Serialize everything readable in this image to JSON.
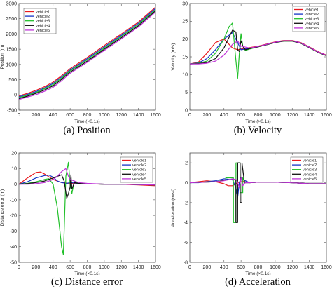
{
  "chart_data": [
    {
      "type": "line",
      "xlabel": "Time (×0.1s)",
      "ylabel": "Position (m)",
      "caption": "(a)  Position",
      "xlim": [
        0,
        1600
      ],
      "ylim": [
        -500,
        3000
      ],
      "xticks": [
        0,
        200,
        400,
        600,
        800,
        1000,
        1200,
        1400,
        1600
      ],
      "yticks": [
        -500,
        0,
        500,
        1000,
        1500,
        2000,
        2500,
        3000
      ],
      "grid": false,
      "legend_position": "top-left",
      "series": [
        {
          "name": "vehicle1",
          "color": "#e8191e",
          "x": [
            0,
            100,
            200,
            300,
            400,
            500,
            560,
            600,
            800,
            1000,
            1200,
            1400,
            1600
          ],
          "y": [
            -30,
            50,
            150,
            270,
            420,
            630,
            770,
            860,
            1230,
            1620,
            2000,
            2390,
            2880
          ]
        },
        {
          "name": "vehicle2",
          "color": "#1433c7",
          "x": [
            0,
            100,
            200,
            300,
            400,
            500,
            560,
            600,
            800,
            1000,
            1200,
            1400,
            1600
          ],
          "y": [
            -60,
            20,
            110,
            230,
            380,
            590,
            730,
            820,
            1190,
            1580,
            1960,
            2350,
            2840
          ]
        },
        {
          "name": "vehicle3",
          "color": "#22c02b",
          "x": [
            0,
            100,
            200,
            300,
            400,
            500,
            560,
            600,
            800,
            1000,
            1200,
            1400,
            1600
          ],
          "y": [
            -90,
            -10,
            80,
            200,
            340,
            550,
            700,
            790,
            1150,
            1540,
            1920,
            2310,
            2800
          ]
        },
        {
          "name": "vehicle4",
          "color": "#111111",
          "x": [
            0,
            100,
            200,
            300,
            400,
            500,
            560,
            600,
            800,
            1000,
            1200,
            1400,
            1600
          ],
          "y": [
            -120,
            -40,
            50,
            160,
            300,
            510,
            660,
            750,
            1110,
            1500,
            1880,
            2270,
            2760
          ]
        },
        {
          "name": "vehicle5",
          "color": "#c032d8",
          "x": [
            0,
            100,
            200,
            300,
            400,
            500,
            560,
            600,
            800,
            1000,
            1200,
            1400,
            1600
          ],
          "y": [
            -150,
            -70,
            10,
            120,
            250,
            460,
            620,
            710,
            1070,
            1460,
            1840,
            2230,
            2720
          ]
        }
      ]
    },
    {
      "type": "line",
      "xlabel": "Time (×0.1s)",
      "ylabel": "Velocity (m/s)",
      "caption": "(b)  Velocity",
      "xlim": [
        0,
        1600
      ],
      "ylim": [
        0,
        30
      ],
      "xticks": [
        0,
        200,
        400,
        600,
        800,
        1000,
        1200,
        1400,
        1600
      ],
      "yticks": [
        0,
        5,
        10,
        15,
        20,
        25,
        30
      ],
      "grid": false,
      "legend_position": "top-right",
      "series": [
        {
          "name": "vehicle1",
          "color": "#e8191e",
          "x": [
            0,
            100,
            200,
            300,
            400,
            500,
            560,
            600,
            700,
            800,
            900,
            1000,
            1100,
            1200,
            1300,
            1400,
            1500,
            1600
          ],
          "y": [
            13,
            13.5,
            16,
            19,
            20,
            17.5,
            17,
            17.2,
            17.6,
            18,
            18.6,
            19.2,
            19.6,
            19.6,
            19,
            17.8,
            16.5,
            15.5
          ]
        },
        {
          "name": "vehicle2",
          "color": "#1433c7",
          "x": [
            0,
            100,
            200,
            300,
            400,
            500,
            560,
            600,
            700,
            800,
            900,
            1000,
            1100,
            1200,
            1300,
            1400,
            1500,
            1600
          ],
          "y": [
            13,
            13.3,
            14.5,
            17,
            20,
            21.8,
            19,
            17,
            17.4,
            17.9,
            18.5,
            19.1,
            19.5,
            19.5,
            18.9,
            17.7,
            16.4,
            15.4
          ]
        },
        {
          "name": "vehicle3",
          "color": "#22c02b",
          "x": [
            0,
            100,
            200,
            300,
            400,
            460,
            500,
            540,
            560,
            580,
            600,
            620,
            650,
            700,
            800,
            900,
            1000,
            1100,
            1200,
            1300,
            1400,
            1500,
            1600
          ],
          "y": [
            13,
            13.2,
            13.8,
            16,
            20,
            23.5,
            24.5,
            14,
            9,
            16,
            21.5,
            18,
            16.8,
            17.2,
            17.8,
            18.4,
            19,
            19.4,
            19.4,
            18.8,
            17.6,
            16.3,
            15.3
          ]
        },
        {
          "name": "vehicle4",
          "color": "#111111",
          "x": [
            0,
            100,
            200,
            300,
            400,
            450,
            500,
            540,
            560,
            580,
            600,
            620,
            650,
            700,
            800,
            900,
            1000,
            1100,
            1200,
            1300,
            1400,
            1500,
            1600
          ],
          "y": [
            13,
            13.1,
            13.4,
            14.5,
            17.5,
            20,
            22.5,
            22,
            17,
            16.5,
            19.5,
            18,
            17,
            17.3,
            17.8,
            18.4,
            19,
            19.4,
            19.4,
            18.8,
            17.6,
            16.3,
            15.3
          ]
        },
        {
          "name": "vehicle5",
          "color": "#c032d8",
          "x": [
            0,
            100,
            200,
            300,
            400,
            500,
            560,
            600,
            700,
            800,
            900,
            1000,
            1100,
            1200,
            1300,
            1400,
            1500,
            1600
          ],
          "y": [
            13,
            13,
            13.2,
            13.8,
            15.5,
            18.5,
            19.5,
            18,
            17.5,
            17.9,
            18.5,
            19.1,
            19.5,
            19.5,
            18.9,
            17.7,
            16.4,
            15.4
          ]
        }
      ]
    },
    {
      "type": "line",
      "xlabel": "Time (×0.1s)",
      "ylabel": "Distance error (m)",
      "caption": "(c)  Distance error",
      "xlim": [
        0,
        1600
      ],
      "ylim": [
        -50,
        20
      ],
      "xticks": [
        0,
        200,
        400,
        600,
        800,
        1000,
        1200,
        1400,
        1600
      ],
      "yticks": [
        -50,
        -40,
        -30,
        -20,
        -10,
        0,
        10,
        20
      ],
      "grid": false,
      "legend_position": "top-right",
      "series": [
        {
          "name": "vehicle1",
          "color": "#e8191e",
          "x": [
            0,
            100,
            200,
            250,
            300,
            400,
            500,
            600,
            700,
            800,
            1000,
            1200,
            1400,
            1600
          ],
          "y": [
            0,
            4,
            7.5,
            7.8,
            6.5,
            3,
            1,
            0.5,
            0.3,
            0.2,
            0,
            0,
            -0.5,
            -1
          ]
        },
        {
          "name": "vehicle2",
          "color": "#1433c7",
          "x": [
            0,
            100,
            200,
            300,
            350,
            400,
            450,
            500,
            560,
            600,
            700,
            800,
            1000,
            1200,
            1400,
            1600
          ],
          "y": [
            0,
            1.5,
            4,
            5.5,
            5.8,
            4.5,
            2,
            1,
            0.5,
            1,
            0.5,
            0.3,
            0,
            0,
            -0.3,
            -0.5
          ]
        },
        {
          "name": "vehicle3",
          "color": "#22c02b",
          "x": [
            0,
            100,
            200,
            300,
            350,
            400,
            450,
            480,
            500,
            520,
            530,
            550,
            580,
            600,
            620,
            650,
            700,
            800,
            1000,
            1200,
            1400,
            1600
          ],
          "y": [
            0,
            0.5,
            1.5,
            3,
            3.5,
            0,
            -15,
            -30,
            -40,
            -45,
            -30,
            5,
            14,
            0,
            -6,
            2,
            0.5,
            0.3,
            0,
            0,
            -0.3,
            -0.5
          ]
        },
        {
          "name": "vehicle4",
          "color": "#111111",
          "x": [
            0,
            100,
            200,
            300,
            400,
            450,
            500,
            530,
            560,
            580,
            600,
            610,
            620,
            650,
            700,
            800,
            1000,
            1200,
            1400,
            1600
          ],
          "y": [
            0,
            0.3,
            1,
            2,
            4,
            5,
            6,
            2,
            -9,
            -6,
            -2,
            6,
            -3,
            1,
            0.5,
            0.3,
            0,
            0,
            -0.3,
            -0.5
          ]
        },
        {
          "name": "vehicle5",
          "color": "#c032d8",
          "x": [
            0,
            100,
            200,
            300,
            400,
            450,
            500,
            550,
            580,
            600,
            700,
            800,
            1000,
            1200,
            1400,
            1600
          ],
          "y": [
            0,
            0,
            0.3,
            1,
            3,
            5,
            8,
            10,
            5,
            3,
            1,
            0.5,
            0,
            0,
            -0.3,
            -0.5
          ]
        }
      ]
    },
    {
      "type": "line",
      "xlabel": "Time (×0.1s)",
      "ylabel": "Acceleration (m/s²)",
      "caption": "(d)  Acceleration",
      "xlim": [
        0,
        1600
      ],
      "ylim": [
        -8,
        3
      ],
      "xticks": [
        0,
        200,
        400,
        600,
        800,
        1000,
        1200,
        1400,
        1600
      ],
      "yticks": [
        -8,
        -6,
        -4,
        -2,
        0,
        2
      ],
      "grid": false,
      "legend_position": "top-right",
      "series": [
        {
          "name": "vehicle1",
          "color": "#e8191e",
          "x": [
            0,
            100,
            200,
            300,
            400,
            450,
            500,
            560,
            600,
            650,
            700,
            800,
            1000,
            1200,
            1400,
            1600
          ],
          "y": [
            0,
            0.1,
            0.2,
            0.1,
            -0.1,
            -0.3,
            -0.3,
            0,
            0.1,
            0.2,
            0,
            0.05,
            0.05,
            0,
            -0.1,
            -0.1
          ]
        },
        {
          "name": "vehicle2",
          "color": "#1433c7",
          "x": [
            0,
            100,
            200,
            300,
            400,
            500,
            540,
            560,
            580,
            600,
            650,
            700,
            800,
            1000,
            1200,
            1400,
            1600
          ],
          "y": [
            0,
            0,
            0.1,
            0.2,
            0.4,
            0.3,
            -0.5,
            -1.5,
            0,
            0.5,
            0.2,
            0,
            0.05,
            0.05,
            0,
            -0.1,
            -0.1
          ]
        },
        {
          "name": "vehicle3",
          "color": "#22c02b",
          "x": [
            0,
            300,
            420,
            421,
            470,
            510,
            511,
            540,
            541,
            590,
            591,
            620,
            621,
            650,
            700,
            800,
            1000,
            1200,
            1400,
            1600
          ],
          "y": [
            0,
            0.1,
            0.3,
            0.5,
            0.5,
            0.5,
            -4,
            -4,
            2,
            2,
            -1,
            -1,
            0.5,
            0,
            0,
            0.05,
            0.05,
            0,
            -0.1,
            -0.1
          ]
        },
        {
          "name": "vehicle4",
          "color": "#111111",
          "x": [
            0,
            300,
            450,
            480,
            520,
            540,
            541,
            560,
            561,
            590,
            591,
            610,
            611,
            640,
            700,
            800,
            1000,
            1200,
            1400,
            1600
          ],
          "y": [
            0,
            0.1,
            0.3,
            0.3,
            0.3,
            0.3,
            -4,
            -4,
            2,
            2,
            -2,
            -2,
            2,
            0,
            0,
            0.05,
            0.05,
            0,
            -0.1,
            -0.1
          ]
        },
        {
          "name": "vehicle5",
          "color": "#c032d8",
          "x": [
            0,
            300,
            400,
            450,
            500,
            550,
            580,
            600,
            620,
            650,
            700,
            800,
            1000,
            1200,
            1400,
            1600
          ],
          "y": [
            0,
            0.1,
            0.2,
            0.3,
            0.4,
            0.3,
            -0.5,
            0.5,
            -0.3,
            0,
            0,
            0.05,
            0.05,
            0,
            -0.1,
            -0.1
          ]
        }
      ]
    }
  ]
}
